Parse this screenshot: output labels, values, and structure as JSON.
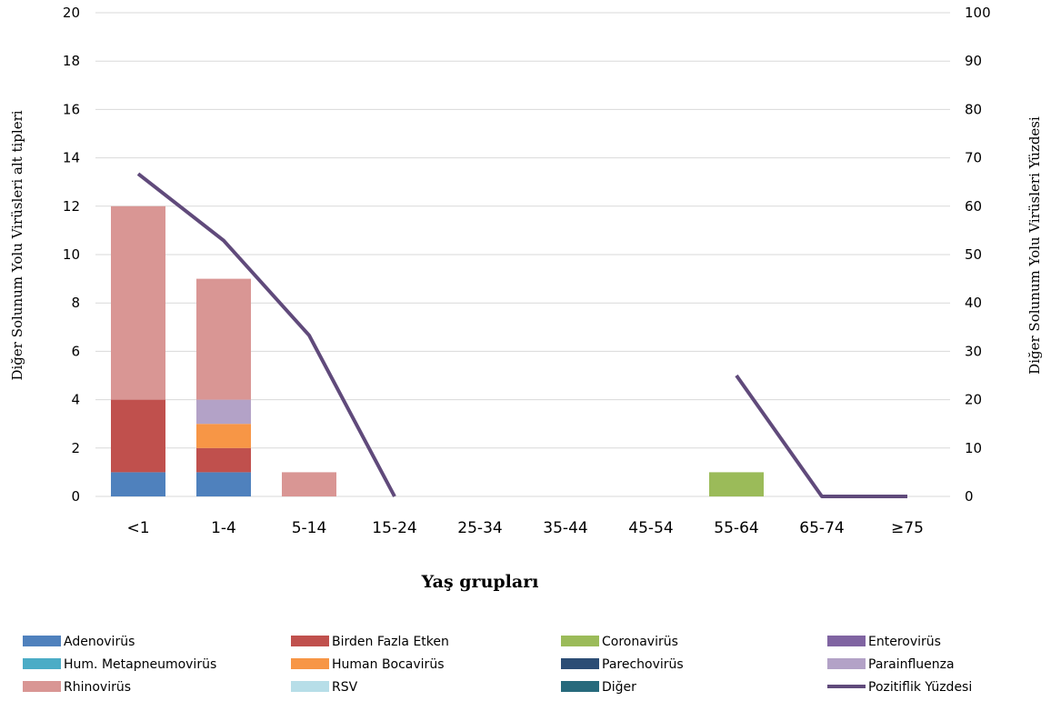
{
  "chart_data": {
    "type": "bar",
    "stacked": true,
    "secondary_type": "line",
    "categories": [
      "<1",
      "1-4",
      "5-14",
      "15-24",
      "25-34",
      "35-44",
      "45-54",
      "55-64",
      "65-74",
      "≥75"
    ],
    "series": [
      {
        "name": "Adenovirüs",
        "color": "#4f81bd",
        "values": [
          1,
          1,
          0,
          0,
          0,
          0,
          0,
          0,
          0,
          0
        ]
      },
      {
        "name": "Birden Fazla Etken",
        "color": "#c0504d",
        "values": [
          3,
          1,
          0,
          0,
          0,
          0,
          0,
          0,
          0,
          0
        ]
      },
      {
        "name": "Coronavirüs",
        "color": "#9bbb59",
        "values": [
          0,
          0,
          0,
          0,
          0,
          0,
          0,
          1,
          0,
          0
        ]
      },
      {
        "name": "Enterovirüs",
        "color": "#8064a2",
        "values": [
          0,
          0,
          0,
          0,
          0,
          0,
          0,
          0,
          0,
          0
        ]
      },
      {
        "name": "Hum. Metapneumovirüs",
        "color": "#4bacc6",
        "values": [
          0,
          0,
          0,
          0,
          0,
          0,
          0,
          0,
          0,
          0
        ]
      },
      {
        "name": "Human Bocavirüs",
        "color": "#f79646",
        "values": [
          0,
          1,
          0,
          0,
          0,
          0,
          0,
          0,
          0,
          0
        ]
      },
      {
        "name": "Parechovirüs",
        "color": "#2c4d75",
        "values": [
          0,
          0,
          0,
          0,
          0,
          0,
          0,
          0,
          0,
          0
        ]
      },
      {
        "name": "Parainfluenza",
        "color": "#b3a2c7",
        "values": [
          0,
          1,
          0,
          0,
          0,
          0,
          0,
          0,
          0,
          0
        ]
      },
      {
        "name": "Rhinovirüs",
        "color": "#d99694",
        "values": [
          8,
          5,
          1,
          0,
          0,
          0,
          0,
          0,
          0,
          0
        ]
      },
      {
        "name": "RSV",
        "color": "#b7dee8",
        "values": [
          0,
          0,
          0,
          0,
          0,
          0,
          0,
          0,
          0,
          0
        ]
      },
      {
        "name": "Diğer",
        "color": "#276a7c",
        "values": [
          0,
          0,
          0,
          0,
          0,
          0,
          0,
          0,
          0,
          0
        ]
      }
    ],
    "line_series": {
      "name": "Pozitiflik Yüzdesi",
      "color": "#604a7b",
      "axis": "right",
      "values": [
        66.7,
        52.9,
        33.3,
        0,
        null,
        null,
        null,
        25,
        0,
        0
      ]
    },
    "xlabel": "Yaş grupları",
    "ylabel": "Diğer Solunum Yolu Virüsleri alt tipleri",
    "y2label": "Diğer Solunum Yolu Virüsleri Yüzdesi",
    "ylim": [
      0,
      20
    ],
    "y2lim": [
      0,
      100
    ],
    "yticks": [
      0,
      2,
      4,
      6,
      8,
      10,
      12,
      14,
      16,
      18,
      20
    ],
    "y2ticks": [
      0,
      10,
      20,
      30,
      40,
      50,
      60,
      70,
      80,
      90,
      100
    ],
    "grid": true,
    "legend_position": "bottom"
  }
}
